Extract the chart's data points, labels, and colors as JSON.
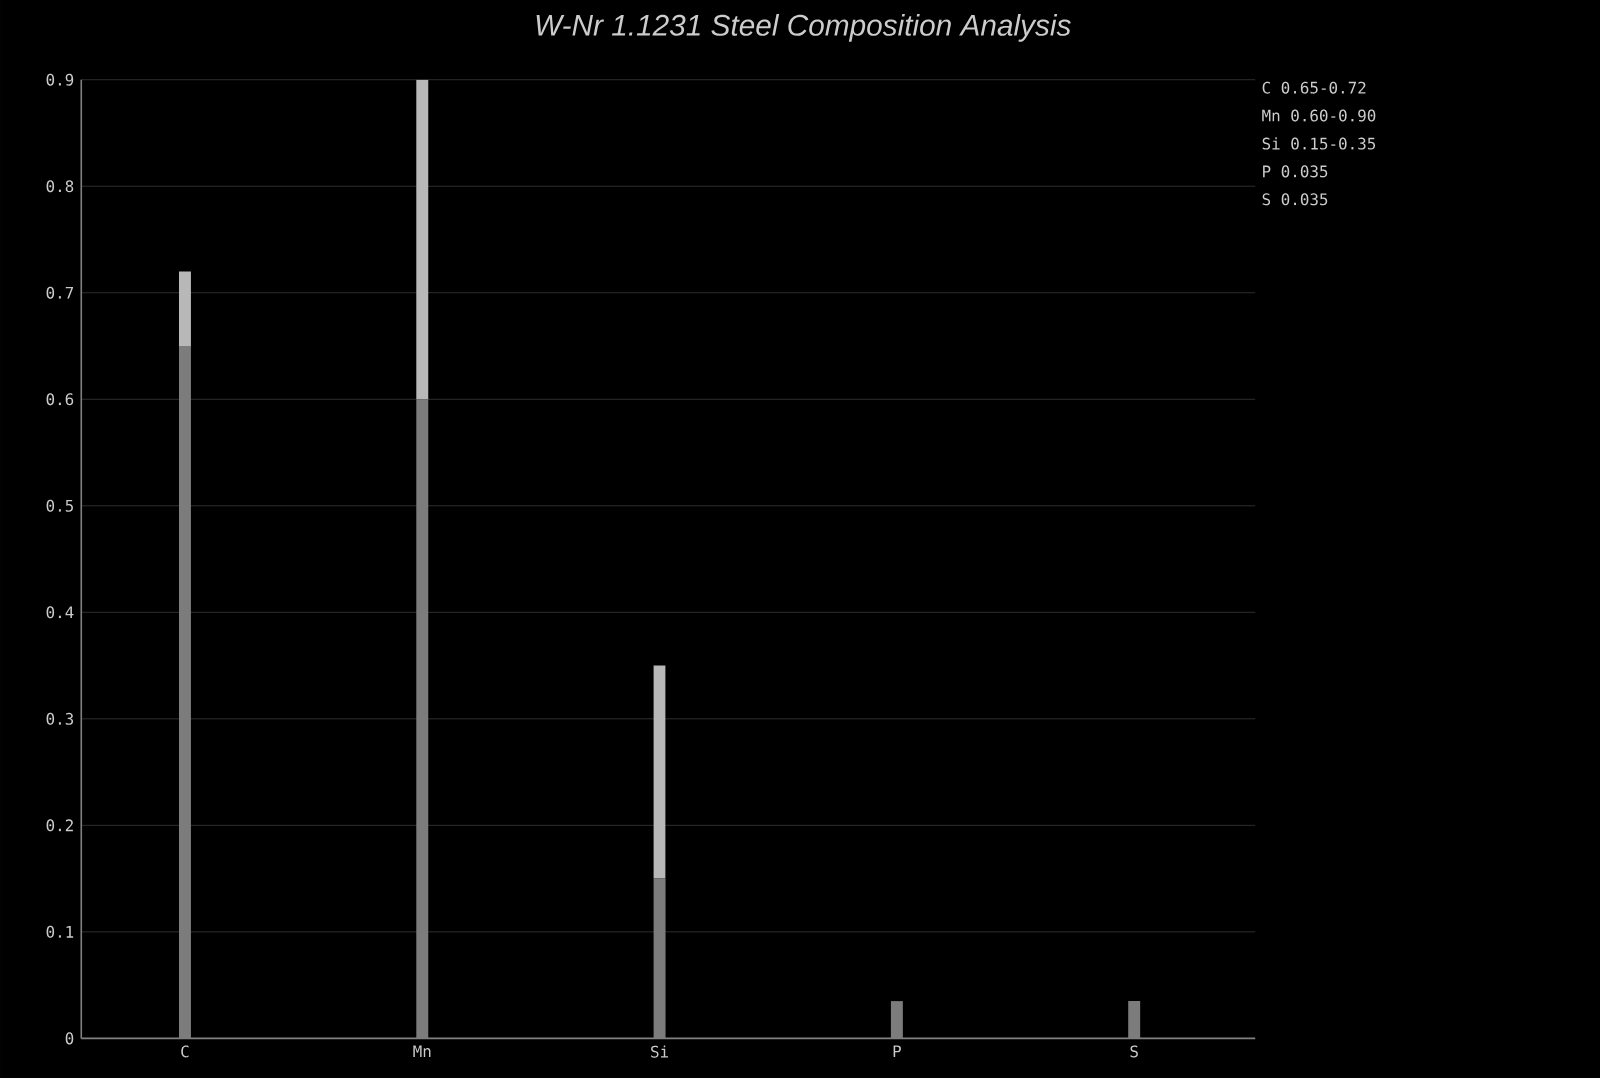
{
  "chart_data": {
    "type": "bar",
    "title": "W-Nr 1.1231 Steel Composition Analysis",
    "categories": [
      "C",
      "Mn",
      "Si",
      "P",
      "S"
    ],
    "stacked": true,
    "series": [
      {
        "color": "#7c7c7c",
        "values": [
          0.65,
          0.6,
          0.15,
          0.035,
          0.035
        ]
      },
      {
        "color": "#b8b8b8",
        "values": [
          0.07,
          0.3,
          0.2,
          null,
          null
        ]
      }
    ],
    "ylim": [
      0,
      0.9
    ],
    "yticks": [
      0,
      0.1,
      0.2,
      0.3,
      0.4,
      0.5,
      0.6,
      0.7,
      0.8,
      0.9
    ],
    "grid": "y",
    "annotations": [
      "C 0.65-0.72",
      "Mn 0.60-0.90",
      "Si 0.15-0.35",
      "P 0.035",
      "S 0.035"
    ]
  }
}
